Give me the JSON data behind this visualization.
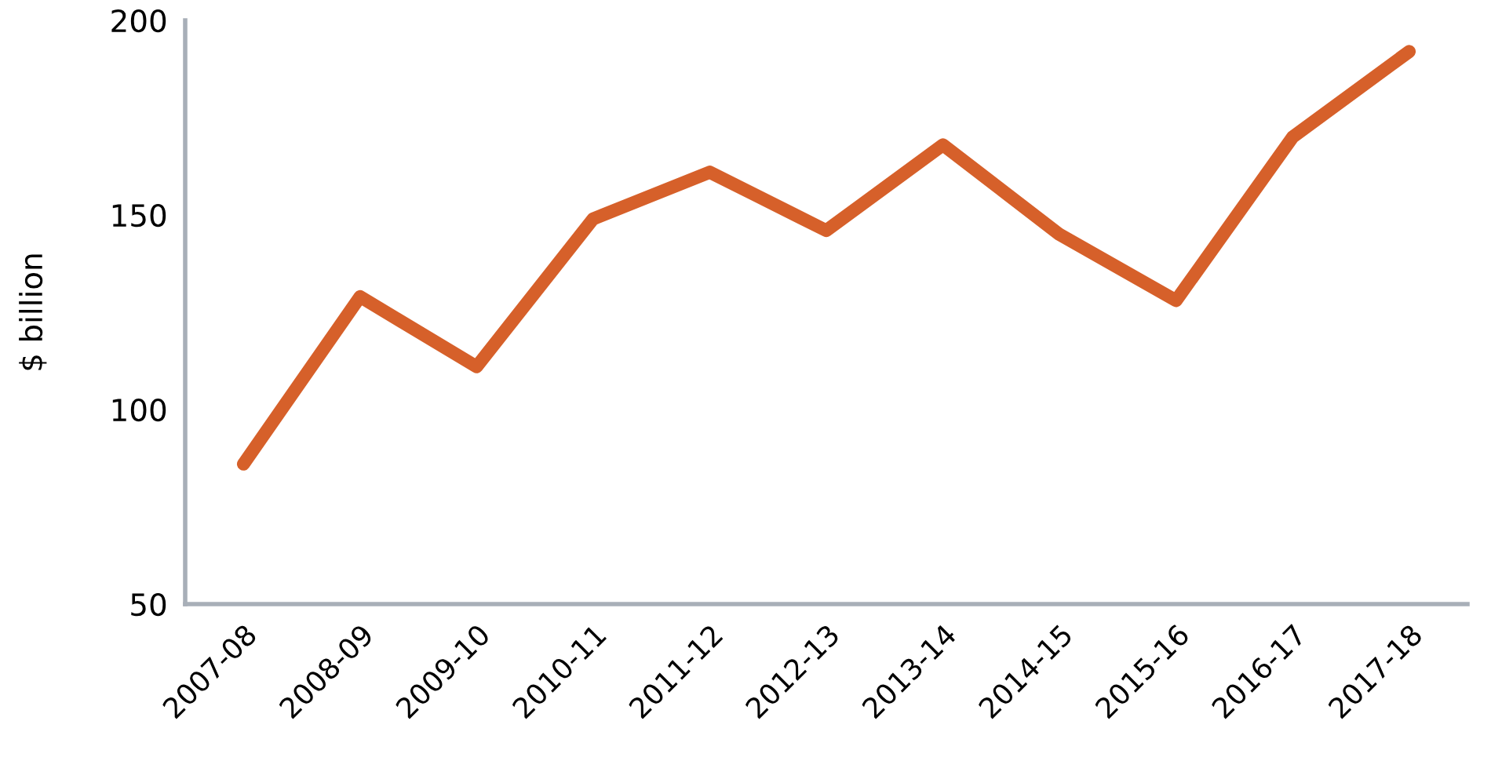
{
  "chart_data": {
    "type": "line",
    "ylabel": "$ billion",
    "categories": [
      "2007-08",
      "2008-09",
      "2009-10",
      "2010-11",
      "2011-12",
      "2012-13",
      "2013-14",
      "2014-15",
      "2015-16",
      "2016-17",
      "2017-18"
    ],
    "series": [
      {
        "color": "#d6602a",
        "values": [
          86,
          129,
          111,
          149,
          161,
          146,
          168,
          145,
          128,
          170,
          192
        ]
      }
    ],
    "ylim": [
      50,
      200
    ],
    "yticks": [
      50,
      100,
      150,
      200
    ],
    "marker": "none",
    "line_style": "solid"
  }
}
